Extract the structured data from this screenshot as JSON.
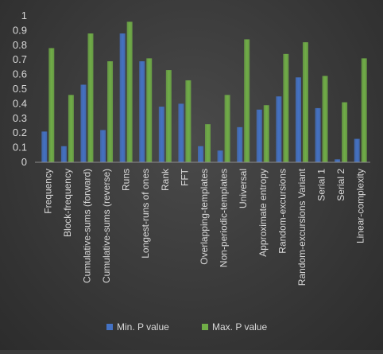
{
  "chart_data": {
    "type": "bar",
    "categories": [
      "Frequency",
      "Block-frequency",
      "Cumulative-sums (forward)",
      "Cumulative-sums (reverse)",
      "Runs",
      "Longest-runs of ones",
      "Rank",
      "FFT",
      "Overlapping-templates",
      "Non-periodic-templates",
      "Universal",
      "Approximate entropy",
      "Random-excursions",
      "Random-excursions Variant",
      "Serial 1",
      "Serial 2",
      "Linear-complexity"
    ],
    "series": [
      {
        "name": "Min. P value",
        "color": "#4472c4",
        "values": [
          0.21,
          0.11,
          0.53,
          0.22,
          0.88,
          0.69,
          0.38,
          0.4,
          0.11,
          0.08,
          0.24,
          0.36,
          0.45,
          0.58,
          0.37,
          0.02,
          0.16
        ]
      },
      {
        "name": "Max. P value",
        "color": "#70ad47",
        "values": [
          0.78,
          0.46,
          0.88,
          0.69,
          0.96,
          0.71,
          0.63,
          0.56,
          0.26,
          0.46,
          0.84,
          0.39,
          0.74,
          0.82,
          0.59,
          0.41,
          0.71
        ]
      }
    ],
    "yticks": [
      "0",
      "0.1",
      "0.2",
      "0.3",
      "0.4",
      "0.5",
      "0.6",
      "0.7",
      "0.8",
      "0.9",
      "1"
    ],
    "ylim": [
      0,
      1
    ],
    "grid": false,
    "legend_position": "bottom",
    "title": "",
    "xlabel": "",
    "ylabel": ""
  }
}
